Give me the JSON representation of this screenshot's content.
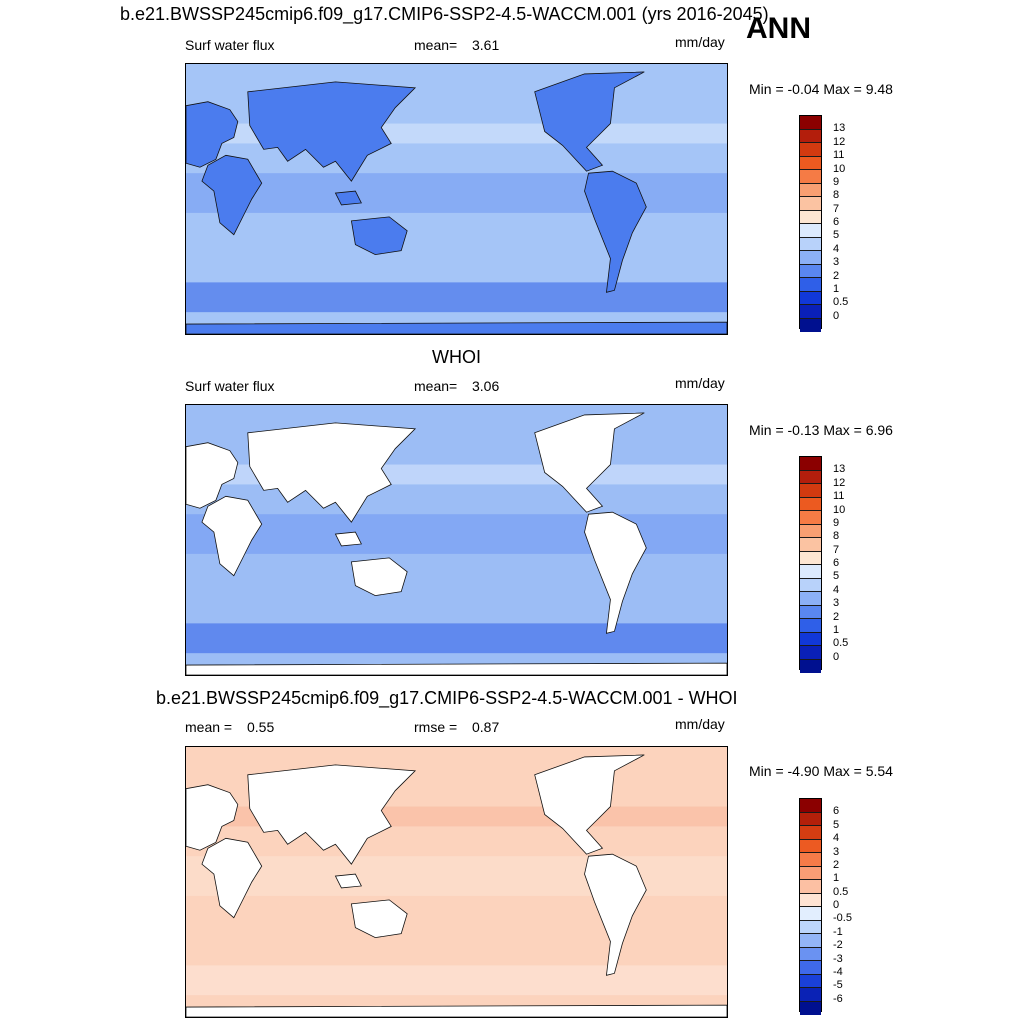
{
  "ann_label": "ANN",
  "panels": [
    {
      "title": "b.e21.BWSSP245cmip6.f09_g17.CMIP6-SSP2-4.5-WACCM.001 (yrs 2016-2045)",
      "variable": "Surf water flux",
      "stat1_label": "mean=",
      "stat1_value": "3.61",
      "stat2_label": "",
      "stat2_value": "",
      "units": "mm/day",
      "minmax": "Min =  -0.04 Max =    9.48",
      "land_masked": false,
      "colorbar_labels": [
        "13",
        "12",
        "11",
        "10",
        "9",
        "8",
        "7",
        "6",
        "5",
        "4",
        "3",
        "2",
        "1",
        "0.5",
        "0"
      ],
      "colorbar_colors": [
        "#8b0000",
        "#b31e0c",
        "#d23a10",
        "#ec5a20",
        "#f57b45",
        "#f89f72",
        "#fbc3a2",
        "#fde6d2",
        "#dceafd",
        "#b8d2fa",
        "#8cb0f6",
        "#5a87f0",
        "#2f5fe8",
        "#1138d8",
        "#0a20b8",
        "#00108f"
      ],
      "ocean_color": "#a5c5f7",
      "land_color": "#4b7cee"
    },
    {
      "title": "WHOI",
      "variable": "Surf water flux",
      "stat1_label": "mean=",
      "stat1_value": "3.06",
      "stat2_label": "",
      "stat2_value": "",
      "units": "mm/day",
      "minmax": "Min =  -0.13 Max =    6.96",
      "land_masked": true,
      "colorbar_labels": [
        "13",
        "12",
        "11",
        "10",
        "9",
        "8",
        "7",
        "6",
        "5",
        "4",
        "3",
        "2",
        "1",
        "0.5",
        "0"
      ],
      "colorbar_colors": [
        "#8b0000",
        "#b31e0c",
        "#d23a10",
        "#ec5a20",
        "#f57b45",
        "#f89f72",
        "#fbc3a2",
        "#fde6d2",
        "#dceafd",
        "#b8d2fa",
        "#8cb0f6",
        "#5a87f0",
        "#2f5fe8",
        "#1138d8",
        "#0a20b8",
        "#00108f"
      ],
      "ocean_color": "#9cbdf5",
      "land_color": "#ffffff"
    },
    {
      "title": "b.e21.BWSSP245cmip6.f09_g17.CMIP6-SSP2-4.5-WACCM.001 - WHOI",
      "variable": "",
      "stat1_label": "mean =",
      "stat1_value": "0.55",
      "stat2_label": "rmse =",
      "stat2_value": "0.87",
      "units": "mm/day",
      "minmax": "Min =  -4.90 Max =    5.54",
      "land_masked": true,
      "colorbar_labels": [
        "6",
        "5",
        "4",
        "3",
        "2",
        "1",
        "0.5",
        "0",
        "-0.5",
        "-1",
        "-2",
        "-3",
        "-4",
        "-5",
        "-6"
      ],
      "colorbar_colors": [
        "#8b0000",
        "#b3200a",
        "#d43d12",
        "#ec5a22",
        "#f57b48",
        "#f99d75",
        "#fcc0a3",
        "#fee3d3",
        "#e2eefe",
        "#bcd5fb",
        "#93b5f7",
        "#6a92f2",
        "#3f69ea",
        "#1a40d9",
        "#0a22b5",
        "#00108f"
      ],
      "ocean_color": "#fcd3bd",
      "land_color": "#ffffff"
    }
  ]
}
